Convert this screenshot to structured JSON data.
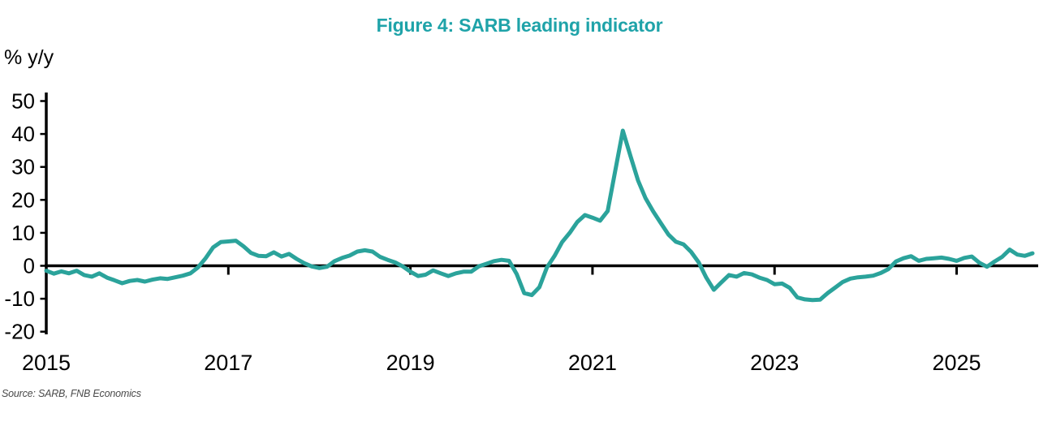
{
  "title": {
    "text": "Figure 4: SARB leading indicator",
    "color": "#1FA3A9"
  },
  "y_axis_unit_label": "% y/y",
  "source_note": "Source: SARB, FNB Economics",
  "chart_data": {
    "type": "line",
    "title": "Figure 4: SARB leading indicator",
    "ylabel": "% y/y",
    "ylim": [
      -20,
      50
    ],
    "xlim_years": [
      2015,
      2025.95
    ],
    "grid": false,
    "legend": "none",
    "line_color": "#2BA39B",
    "axis_color": "#000000",
    "y_ticks": [
      50,
      40,
      30,
      20,
      10,
      0,
      -10,
      -20
    ],
    "x_axis": [
      {
        "label": "2015",
        "month_offset": 0,
        "tick": false
      },
      {
        "label": "2017",
        "month_offset": 24,
        "tick": true
      },
      {
        "label": "2019",
        "month_offset": 48,
        "tick": true
      },
      {
        "label": "2021",
        "month_offset": 72,
        "tick": true
      },
      {
        "label": "2023",
        "month_offset": 96,
        "tick": true
      },
      {
        "label": "2025",
        "month_offset": 120,
        "tick": true
      }
    ],
    "series": [
      {
        "name": "SARB leading indicator, % y/y",
        "frequency": "monthly",
        "start": "2015-01",
        "end": "2025-11",
        "values": [
          -1.5,
          -2.4,
          -1.7,
          -2.3,
          -1.5,
          -2.8,
          -3.3,
          -2.3,
          -3.6,
          -4.4,
          -5.3,
          -4.6,
          -4.3,
          -4.8,
          -4.2,
          -3.8,
          -4.0,
          -3.5,
          -3.0,
          -2.3,
          -0.5,
          2.3,
          5.6,
          7.2,
          7.4,
          7.6,
          5.9,
          3.9,
          3.0,
          2.9,
          4.1,
          2.8,
          3.6,
          2.1,
          0.8,
          -0.2,
          -0.7,
          -0.3,
          1.4,
          2.4,
          3.1,
          4.3,
          4.7,
          4.3,
          2.7,
          1.8,
          1.0,
          -0.2,
          -1.8,
          -3.1,
          -2.7,
          -1.4,
          -2.3,
          -3.1,
          -2.3,
          -1.8,
          -1.8,
          -0.2,
          0.6,
          1.4,
          1.8,
          1.5,
          -2.5,
          -8.3,
          -8.9,
          -6.5,
          -0.5,
          3.0,
          7.2,
          10.0,
          13.3,
          15.4,
          14.6,
          13.7,
          16.6,
          28.9,
          41.0,
          33.4,
          25.9,
          20.5,
          16.5,
          13.0,
          9.5,
          7.3,
          6.5,
          4.2,
          1.0,
          -3.6,
          -7.3,
          -5.0,
          -2.8,
          -3.3,
          -2.2,
          -2.6,
          -3.6,
          -4.3,
          -5.6,
          -5.4,
          -6.7,
          -9.6,
          -10.2,
          -10.4,
          -10.3,
          -8.3,
          -6.6,
          -4.9,
          -3.9,
          -3.5,
          -3.3,
          -3.0,
          -2.2,
          -1.0,
          1.3,
          2.3,
          2.9,
          1.5,
          2.1,
          2.3,
          2.5,
          2.1,
          1.5,
          2.4,
          2.8,
          0.9,
          -0.3,
          1.3,
          2.7,
          4.9,
          3.4,
          3.0,
          3.8
        ]
      }
    ]
  }
}
